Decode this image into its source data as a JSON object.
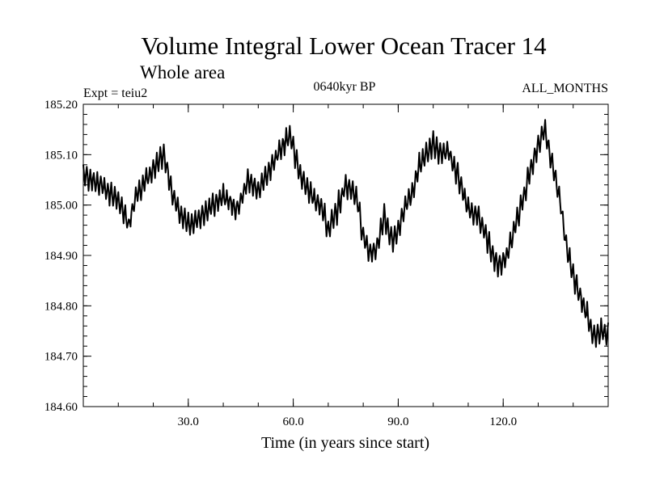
{
  "chart_data": {
    "type": "line",
    "title": "Volume Integral Lower Ocean Tracer 14",
    "subtitle": "Whole area",
    "expt_label": "Expt = teiu2",
    "period_label": "0640kyr BP",
    "months_label": "ALL_MONTHS",
    "xlabel": "Time (in years since start)",
    "ylabel": "",
    "xlim": [
      0,
      150
    ],
    "ylim": [
      184.6,
      185.2
    ],
    "x_ticks": [
      30,
      60,
      90,
      120
    ],
    "x_tick_labels": [
      "30.0",
      "60.0",
      "90.0",
      "120.0"
    ],
    "x_minor_step": 10,
    "y_ticks": [
      184.6,
      184.7,
      184.8,
      184.9,
      185.0,
      185.1,
      185.2
    ],
    "y_tick_labels": [
      "184.60",
      "184.70",
      "184.80",
      "184.90",
      "185.00",
      "185.10",
      "185.20"
    ],
    "y_minor_step": 0.02,
    "grid": false,
    "series": [
      {
        "name": "Lower Ocean Tracer 14",
        "color": "#000000",
        "samples_per_year": 4,
        "oscillation_amplitude": 0.04,
        "envelope": {
          "x": [
            0,
            5,
            10,
            13,
            15,
            18,
            21,
            23,
            26,
            28,
            31,
            34,
            37,
            40,
            44,
            47,
            50,
            54,
            57,
            59,
            62,
            65,
            68,
            70,
            72,
            75,
            78,
            80,
            82,
            84,
            86,
            88,
            90,
            92,
            94,
            96,
            98,
            100,
            102,
            104,
            107,
            110,
            113,
            115,
            117,
            119,
            121,
            124,
            127,
            130,
            132,
            134,
            136,
            138,
            140,
            142,
            144,
            146,
            148,
            150
          ],
          "y": [
            185.06,
            185.04,
            185.01,
            184.96,
            185.02,
            185.05,
            185.08,
            185.1,
            185.01,
            184.98,
            184.96,
            184.98,
            185.0,
            185.02,
            184.99,
            185.05,
            185.03,
            185.08,
            185.12,
            185.14,
            185.06,
            185.02,
            185.0,
            184.95,
            184.98,
            185.04,
            185.02,
            184.94,
            184.9,
            184.92,
            184.98,
            184.93,
            184.95,
            185.0,
            185.02,
            185.08,
            185.1,
            185.12,
            185.1,
            185.11,
            185.06,
            184.99,
            184.98,
            184.94,
            184.9,
            184.88,
            184.9,
            184.97,
            185.05,
            185.12,
            185.15,
            185.08,
            185.02,
            184.92,
            184.86,
            184.82,
            184.78,
            184.74,
            184.75,
            184.74
          ]
        }
      }
    ]
  }
}
